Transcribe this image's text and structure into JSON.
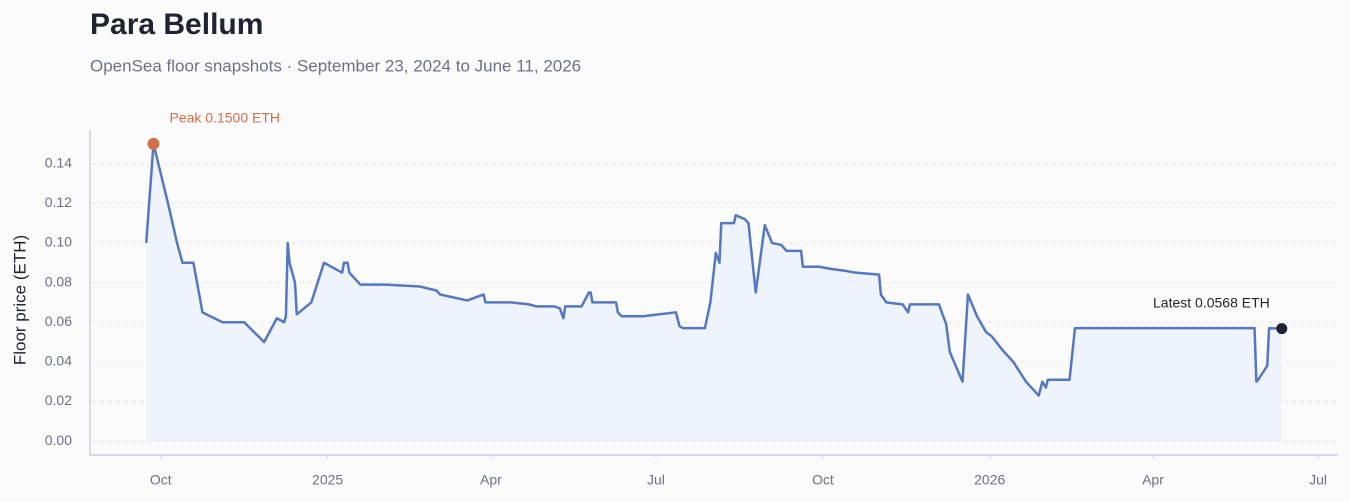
{
  "chart_data": {
    "type": "line",
    "title": "Para Bellum",
    "subtitle": "OpenSea floor snapshots · September 23, 2024 to June 11, 2026",
    "y_label": "Floor price (ETH)",
    "peak_label": "Peak 0.1500 ETH",
    "peak_color": "#d0704a",
    "latest_label": "Latest 0.0568 ETH",
    "latest_color": "#1f2430",
    "grid": true,
    "xlim": [
      "2024-08-23",
      "2026-07-12"
    ],
    "ylim": [
      -0.007,
      0.157
    ],
    "xticks": [
      {
        "value": "2024-10-01",
        "label": "Oct"
      },
      {
        "value": "2025-01-01",
        "label": "2025"
      },
      {
        "value": "2025-04-01",
        "label": "Apr"
      },
      {
        "value": "2025-07-01",
        "label": "Jul"
      },
      {
        "value": "2025-10-01",
        "label": "Oct"
      },
      {
        "value": "2026-01-01",
        "label": "2026"
      },
      {
        "value": "2026-04-01",
        "label": "Apr"
      },
      {
        "value": "2026-07-01",
        "label": "Jul"
      }
    ],
    "yticks": [
      {
        "value": 0,
        "label": "0.00"
      },
      {
        "value": 0.02,
        "label": "0.02"
      },
      {
        "value": 0.04,
        "label": "0.04"
      },
      {
        "value": 0.06,
        "label": "0.06"
      },
      {
        "value": 0.08,
        "label": "0.08"
      },
      {
        "value": 0.1,
        "label": "0.10"
      },
      {
        "value": 0.12,
        "label": "0.12"
      },
      {
        "value": 0.14,
        "label": "0.14"
      }
    ],
    "x": [
      "2024-09-23",
      "2024-09-27",
      "2024-10-05",
      "2024-10-10",
      "2024-10-13",
      "2024-10-19",
      "2024-10-24",
      "2024-11-04",
      "2024-11-16",
      "2024-11-27",
      "2024-12-04",
      "2024-12-08",
      "2024-12-09",
      "2024-12-10",
      "2024-12-11",
      "2024-12-14",
      "2024-12-15",
      "2024-12-23",
      "2024-12-30",
      "2025-01-09",
      "2025-01-10",
      "2025-01-12",
      "2025-01-13",
      "2025-01-19",
      "2025-02-02",
      "2025-02-21",
      "2025-03-02",
      "2025-03-04",
      "2025-03-19",
      "2025-03-28",
      "2025-03-29",
      "2025-04-12",
      "2025-04-22",
      "2025-04-26",
      "2025-05-06",
      "2025-05-09",
      "2025-05-11",
      "2025-05-12",
      "2025-05-21",
      "2025-05-25",
      "2025-05-26",
      "2025-05-27",
      "2025-06-09",
      "2025-06-10",
      "2025-06-12",
      "2025-06-24",
      "2025-07-12",
      "2025-07-14",
      "2025-07-16",
      "2025-07-28",
      "2025-07-31",
      "2025-08-03",
      "2025-08-05",
      "2025-08-06",
      "2025-08-13",
      "2025-08-14",
      "2025-08-19",
      "2025-08-21",
      "2025-08-25",
      "2025-08-30",
      "2025-09-03",
      "2025-09-08",
      "2025-09-11",
      "2025-09-19",
      "2025-09-20",
      "2025-09-29",
      "2025-10-05",
      "2025-10-13",
      "2025-10-19",
      "2025-11-01",
      "2025-11-02",
      "2025-11-05",
      "2025-11-14",
      "2025-11-17",
      "2025-11-18",
      "2025-12-04",
      "2025-12-08",
      "2025-12-10",
      "2025-12-17",
      "2025-12-20",
      "2025-12-25",
      "2025-12-30",
      "2026-01-02",
      "2026-01-08",
      "2026-01-14",
      "2026-01-21",
      "2026-01-28",
      "2026-01-30",
      "2026-02-01",
      "2026-02-02",
      "2026-02-14",
      "2026-02-17",
      "2026-05-27",
      "2026-05-28",
      "2026-05-29",
      "2026-06-03",
      "2026-06-04",
      "2026-06-11"
    ],
    "series": [
      {
        "name": "Floor price",
        "color": "#5578c0",
        "fill": "#eef3fc",
        "values": [
          0.1,
          0.15,
          0.12,
          0.1,
          0.09,
          0.09,
          0.065,
          0.06,
          0.06,
          0.05,
          0.062,
          0.06,
          0.063,
          0.1,
          0.09,
          0.08,
          0.064,
          0.07,
          0.09,
          0.085,
          0.09,
          0.09,
          0.085,
          0.079,
          0.079,
          0.078,
          0.076,
          0.074,
          0.071,
          0.074,
          0.07,
          0.07,
          0.069,
          0.068,
          0.068,
          0.067,
          0.062,
          0.068,
          0.068,
          0.075,
          0.075,
          0.07,
          0.07,
          0.065,
          0.063,
          0.063,
          0.065,
          0.058,
          0.057,
          0.057,
          0.07,
          0.095,
          0.09,
          0.11,
          0.11,
          0.114,
          0.112,
          0.11,
          0.075,
          0.109,
          0.1,
          0.099,
          0.096,
          0.096,
          0.088,
          0.088,
          0.087,
          0.086,
          0.085,
          0.084,
          0.074,
          0.07,
          0.069,
          0.065,
          0.069,
          0.069,
          0.059,
          0.045,
          0.03,
          0.074,
          0.063,
          0.055,
          0.053,
          0.046,
          0.04,
          0.03,
          0.023,
          0.03,
          0.027,
          0.031,
          0.031,
          0.057,
          0.057,
          0.03,
          0.031,
          0.038,
          0.057,
          0.0568
        ]
      }
    ]
  }
}
